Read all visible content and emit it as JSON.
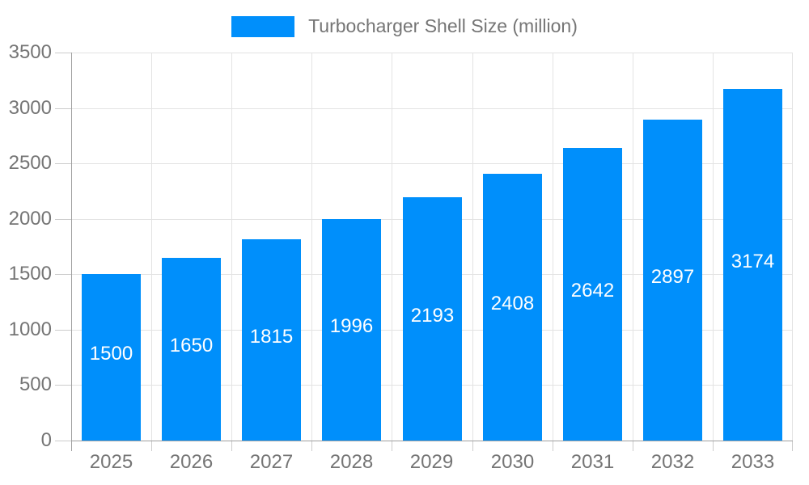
{
  "legend": {
    "label": "Turbocharger Shell Size (million)",
    "position": "top"
  },
  "colors": {
    "bar": "#008FFB",
    "bar_label_text": "#FFFFFF",
    "axis_text": "#757575",
    "gridline": "#E3E3E3",
    "axis_line": "#A0A0A0",
    "tick": "#CCCCCC",
    "background": "#FFFFFF"
  },
  "chart_data": {
    "type": "bar",
    "title": "Turbocharger Shell Size (million)",
    "categories": [
      "2025",
      "2026",
      "2027",
      "2028",
      "2029",
      "2030",
      "2031",
      "2032",
      "2033"
    ],
    "values": [
      1500,
      1650,
      1815,
      1996,
      2193,
      2408,
      2642,
      2897,
      3174
    ],
    "xlabel": "",
    "ylabel": "",
    "ylim": [
      0,
      3500
    ],
    "yticks": [
      0,
      500,
      1000,
      1500,
      2000,
      2500,
      3000,
      3500
    ],
    "grid": true,
    "legend_position": "top",
    "value_labels": "inside-center-white"
  }
}
